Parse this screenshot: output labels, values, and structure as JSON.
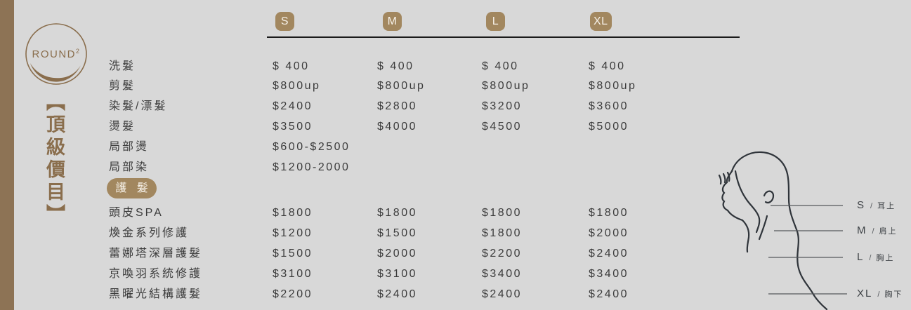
{
  "brand": {
    "name": "ROUND",
    "superscript": "2"
  },
  "title": {
    "text": "【頂級價目】"
  },
  "price_table": {
    "sizes": [
      "S",
      "M",
      "L",
      "XL"
    ],
    "services": [
      {
        "name": "洗髮",
        "prices": [
          "$ 400",
          "$ 400",
          "$ 400",
          "$ 400"
        ]
      },
      {
        "name": "剪髮",
        "prices": [
          "$800up",
          "$800up",
          "$800up",
          "$800up"
        ]
      },
      {
        "name": "染髮/漂髮",
        "prices": [
          "$2400",
          "$2800",
          "$3200",
          "$3600"
        ]
      },
      {
        "name": "燙髮",
        "prices": [
          "$3500",
          "$4000",
          "$4500",
          "$5000"
        ]
      },
      {
        "name": "局部燙",
        "prices": [
          "$600-$2500",
          "",
          "",
          ""
        ]
      },
      {
        "name": "局部染",
        "prices": [
          "$1200-2000",
          "",
          "",
          ""
        ]
      }
    ],
    "care_badge": "護 髮",
    "care_services": [
      {
        "name": "頭皮SPA",
        "prices": [
          "$1800",
          "$1800",
          "$1800",
          "$1800"
        ]
      },
      {
        "name": "煥金系列修護",
        "prices": [
          "$1200",
          "$1500",
          "$1800",
          "$2000"
        ]
      },
      {
        "name": "蕾娜塔深層護髮",
        "prices": [
          "$1500",
          "$2000",
          "$2200",
          "$2400"
        ]
      },
      {
        "name": "京喚羽系統修護",
        "prices": [
          "$3100",
          "$3100",
          "$3400",
          "$3400"
        ]
      },
      {
        "name": "黑曜光結構護髮",
        "prices": [
          "$2200",
          "$2400",
          "$2400",
          "$2400"
        ]
      }
    ]
  },
  "size_guide": {
    "items": [
      {
        "size": "S",
        "separator": "/",
        "desc": "耳上"
      },
      {
        "size": "M",
        "separator": "/",
        "desc": "肩上"
      },
      {
        "size": "L",
        "separator": "/",
        "desc": "胸上"
      },
      {
        "size": "XL",
        "separator": "/",
        "desc": "胸下"
      }
    ]
  },
  "colors": {
    "background": "#d8d8d8",
    "accent_brown": "#8d7355",
    "badge_brown": "#a2875f",
    "logo_brown": "#8a6e4d",
    "text": "#3b3b3b"
  }
}
